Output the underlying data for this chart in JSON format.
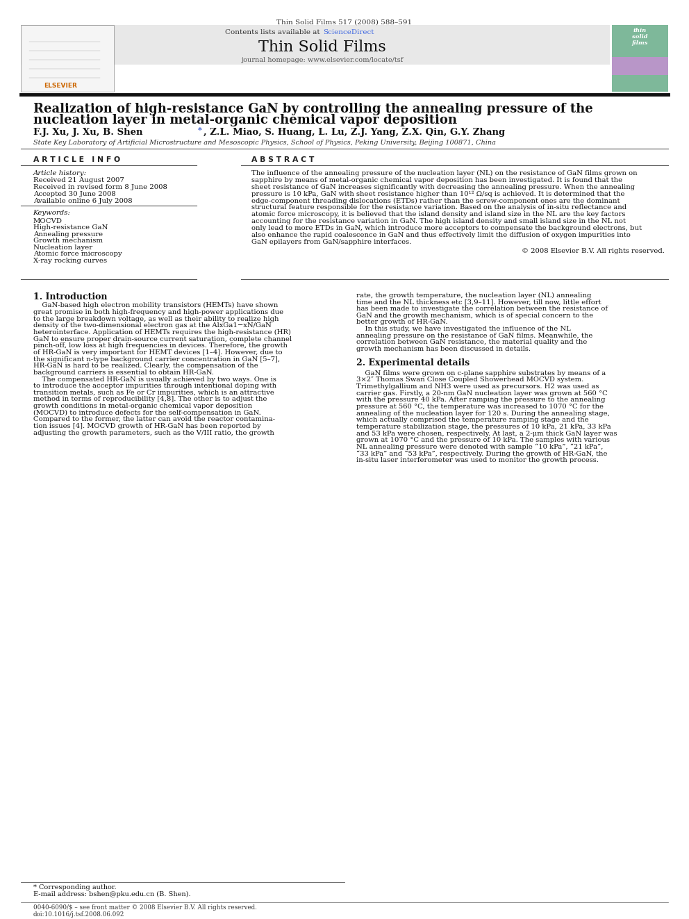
{
  "page_width": 9.92,
  "page_height": 13.23,
  "bg_color": "#ffffff",
  "journal_header_text": "Thin Solid Films 517 (2008) 588–591",
  "header_bg": "#e8e8e8",
  "contents_text": "Contents lists available at ",
  "sciencedirect_text": "ScienceDirect",
  "sciencedirect_color": "#4169E1",
  "journal_name": "Thin Solid Films",
  "journal_homepage": "journal homepage: www.elsevier.com/locate/tsf",
  "paper_title_line1": "Realization of high-resistance GaN by controlling the annealing pressure of the",
  "paper_title_line2": "nucleation layer in metal-organic chemical vapor deposition",
  "authors_pre": "F.J. Xu, J. Xu, B. Shen ",
  "authors_star": "*",
  "authors_post": ", Z.L. Miao, S. Huang, L. Lu, Z.J. Yang, Z.X. Qin, G.Y. Zhang",
  "affiliation": "State Key Laboratory of Artificial Microstructure and Mesoscopic Physics, School of Physics, Peking University, Beijing 100871, China",
  "article_info_header": "A R T I C L E   I N F O",
  "abstract_header": "A B S T R A C T",
  "article_history_label": "Article history:",
  "received_1": "Received 21 August 2007",
  "received_2": "Received in revised form 8 June 2008",
  "accepted": "Accepted 30 June 2008",
  "available": "Available online 6 July 2008",
  "keywords_label": "Keywords:",
  "keywords": [
    "MOCVD",
    "High-resistance GaN",
    "Annealing pressure",
    "Growth mechanism",
    "Nucleation layer",
    "Atomic force microscopy",
    "X-ray rocking curves"
  ],
  "abstract_lines": [
    "The influence of the annealing pressure of the nucleation layer (NL) on the resistance of GaN films grown on",
    "sapphire by means of metal-organic chemical vapor deposition has been investigated. It is found that the",
    "sheet resistance of GaN increases significantly with decreasing the annealing pressure. When the annealing",
    "pressure is 10 kPa, GaN with sheet resistance higher than 10¹² Ω/sq is achieved. It is determined that the",
    "edge-component threading dislocations (ETDs) rather than the screw-component ones are the dominant",
    "structural feature responsible for the resistance variation. Based on the analysis of in-situ reflectance and",
    "atomic force microscopy, it is believed that the island density and island size in the NL are the key factors",
    "accounting for the resistance variation in GaN. The high island density and small island size in the NL not",
    "only lead to more ETDs in GaN, which introduce more acceptors to compensate the background electrons, but",
    "also enhance the rapid coalescence in GaN and thus effectively limit the diffusion of oxygen impurities into",
    "GaN epilayers from GaN/sapphire interfaces."
  ],
  "copyright_text": "© 2008 Elsevier B.V. All rights reserved.",
  "intro_header": "1. Introduction",
  "intro_left_lines": [
    "    GaN-based high electron mobility transistors (HEMTs) have shown",
    "great promise in both high-frequency and high-power applications due",
    "to the large breakdown voltage, as well as their ability to realize high",
    "density of the two-dimensional electron gas at the AlxGa1−xN/GaN",
    "heterointerface. Application of HEMTs requires the high-resistance (HR)",
    "GaN to ensure proper drain-source current saturation, complete channel",
    "pinch-off, low loss at high frequencies in devices. Therefore, the growth",
    "of HR-GaN is very important for HEMT devices [1–4]. However, due to",
    "the significant n-type background carrier concentration in GaN [5–7],",
    "HR-GaN is hard to be realized. Clearly, the compensation of the",
    "background carriers is essential to obtain HR-GaN.",
    "    The compensated HR-GaN is usually achieved by two ways. One is",
    "to introduce the acceptor impurities through intentional doping with",
    "transition metals, such as Fe or Cr impurities, which is an attractive",
    "method in terms of reproducibility [4,8]. The other is to adjust the",
    "growth conditions in metal-organic chemical vapor deposition",
    "(MOCVD) to introduce defects for the self-compensation in GaN.",
    "Compared to the former, the latter can avoid the reactor contamina-",
    "tion issues [4]. MOCVD growth of HR-GaN has been reported by",
    "adjusting the growth parameters, such as the V/III ratio, the growth"
  ],
  "intro_right_lines": [
    "rate, the growth temperature, the nucleation layer (NL) annealing",
    "time and the NL thickness etc [3,9–11]. However, till now, little effort",
    "has been made to investigate the correlation between the resistance of",
    "GaN and the growth mechanism, which is of special concern to the",
    "better growth of HR-GaN.",
    "    In this study, we have investigated the influence of the NL",
    "annealing pressure on the resistance of GaN films. Meanwhile, the",
    "correlation between GaN resistance, the material quality and the",
    "growth mechanism has been discussed in details."
  ],
  "exp_header": "2. Experimental details",
  "exp_right_lines": [
    "    GaN films were grown on c-plane sapphire substrates by means of a",
    "3×2″ Thomas Swan Close Coupled Showerhead MOCVD system.",
    "Trimethylgallium and NH3 were used as precursors. H2 was used as",
    "carrier gas. Firstly, a 20-nm GaN nucleation layer was grown at 560 °C",
    "with the pressure 40 kPa. After ramping the pressure to the annealing",
    "pressure at 560 °C, the temperature was increased to 1070 °C for the",
    "annealing of the nucleation layer for 120 s. During the annealing stage,",
    "which actually comprised the temperature ramping stage and the",
    "temperature stabilization stage, the pressures of 10 kPa, 21 kPa, 33 kPa",
    "and 53 kPa were chosen, respectively. At last, a 2-μm thick GaN layer was",
    "grown at 1070 °C and the pressure of 10 kPa. The samples with various",
    "NL annealing pressure were denoted with sample “10 kPa”, “21 kPa”,",
    "“33 kPa” and “53 kPa”, respectively. During the growth of HR-GaN, the",
    "in-situ laser interferometer was used to monitor the growth process."
  ],
  "footnote_star": "* Corresponding author.",
  "footnote_email": "E-mail address: bshen@pku.edu.cn (B. Shen).",
  "footer_text_left": "0040-6090/$ – see front matter © 2008 Elsevier B.V. All rights reserved.",
  "footer_text_right": "doi:10.1016/j.tsf.2008.06.092"
}
